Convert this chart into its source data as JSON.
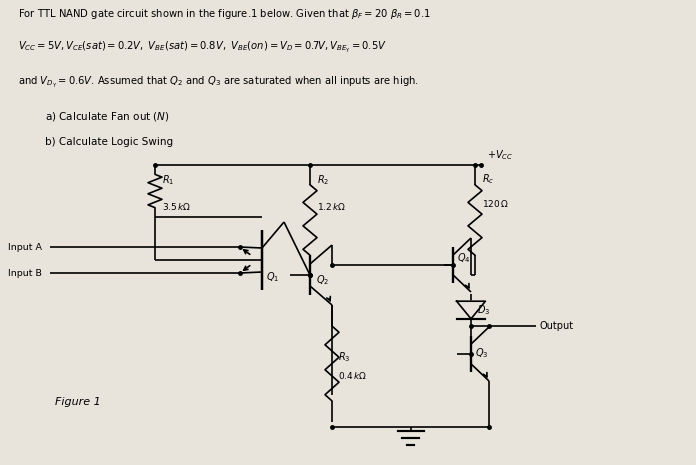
{
  "bg_color": "#e8e4dc",
  "line_color": "#000000",
  "text_color": "#000000",
  "fig_label": "Figure 1",
  "line1": "For TTL NAND gate circuit shown in the figure.1 below. Given that $\\beta_F = 20$ $\\beta_R = 0.1$",
  "line2": "$V_{CC} = 5V, V_{CE}(sat) = 0.2V,\\ V_{BE}(sat) = 0.8V,\\ V_{BE}(on) = V_D = 0.7V, V_{BE_Y} = 0.5V$",
  "line3": "and $V_{D_Y} = 0.6V$. Assumed that $Q_2$ and $Q_3$ are saturated when all inputs are high.",
  "qa": "a) Calculate Fan out ($N$)",
  "qb": "b) Calculate Logic Swing"
}
